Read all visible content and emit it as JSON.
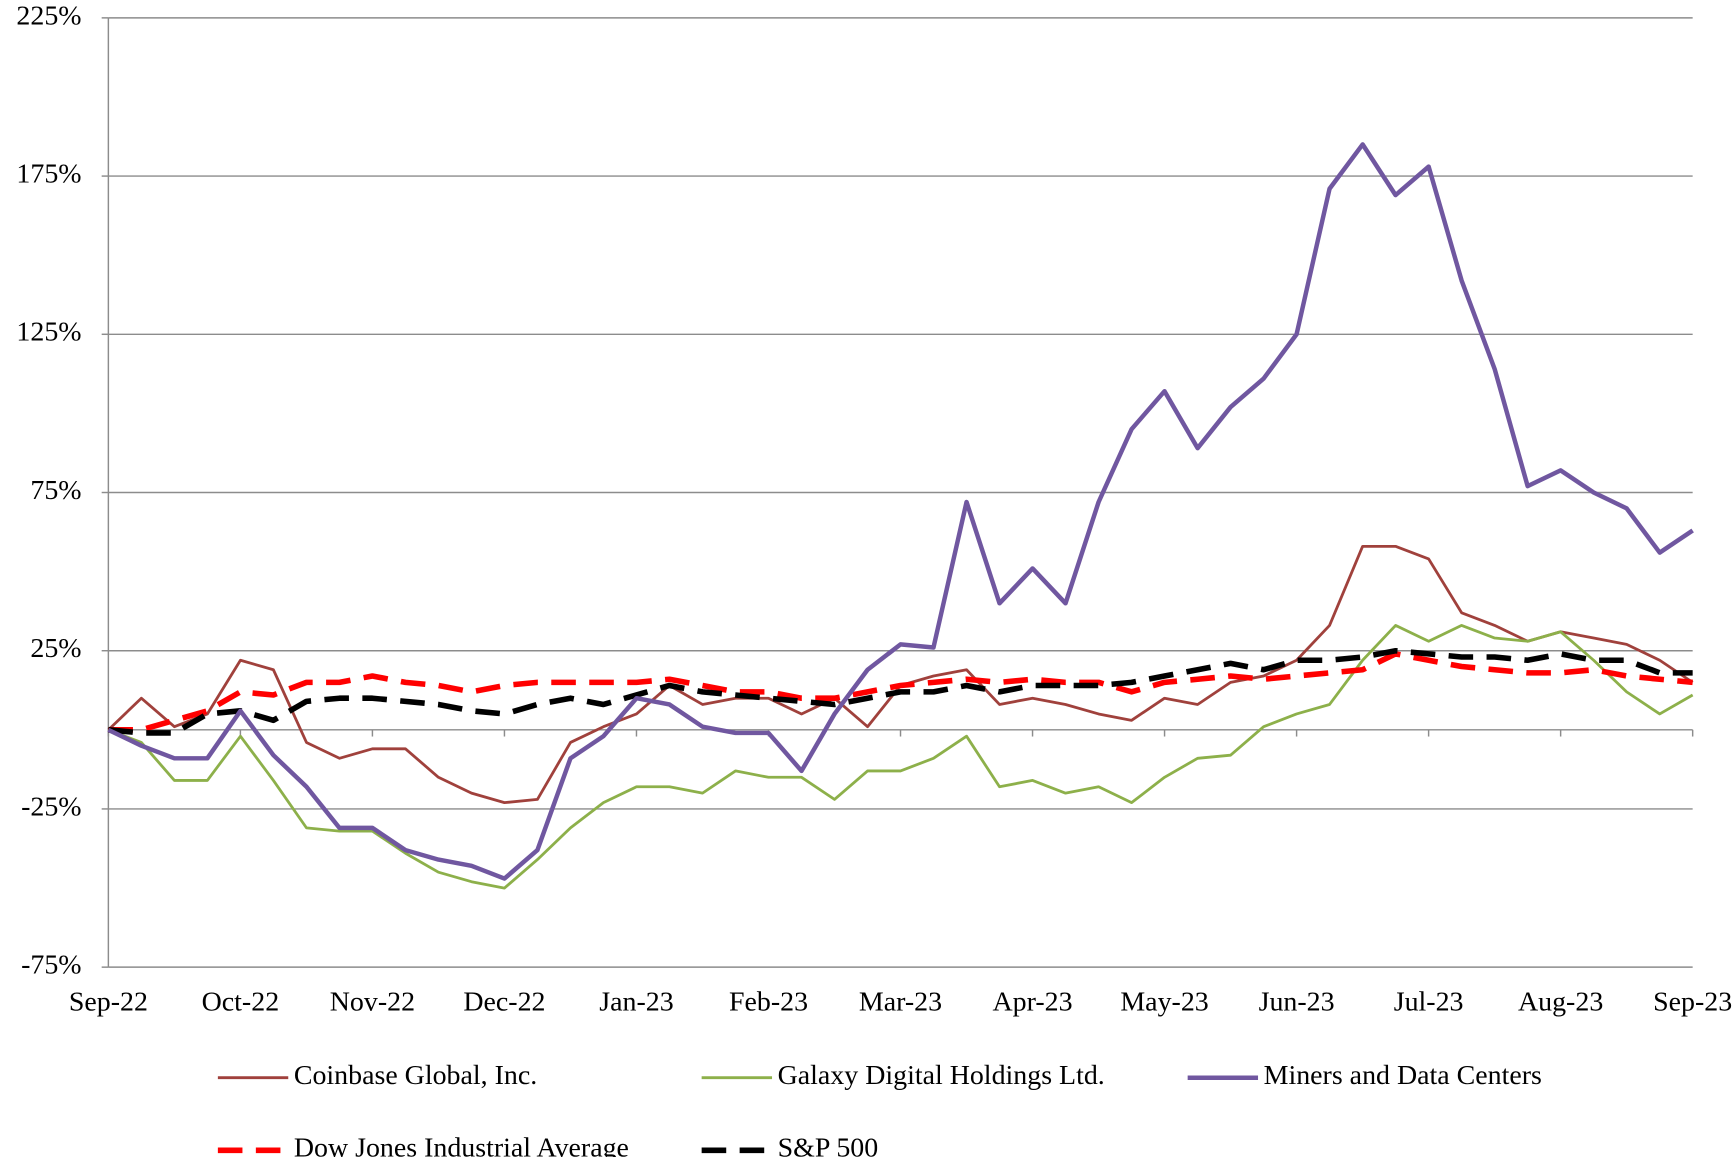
{
  "chart_data": {
    "type": "line",
    "categories": [
      "Sep-22",
      null,
      null,
      null,
      "Oct-22",
      null,
      null,
      null,
      "Nov-22",
      null,
      null,
      null,
      "Dec-22",
      null,
      null,
      null,
      "Jan-23",
      null,
      null,
      null,
      "Feb-23",
      null,
      null,
      null,
      "Mar-23",
      null,
      null,
      null,
      "Apr-23",
      null,
      null,
      null,
      "May-23",
      null,
      null,
      null,
      "Jun-23",
      null,
      null,
      null,
      "Jul-23",
      null,
      null,
      null,
      "Aug-23",
      null,
      null,
      null,
      "Sep-23"
    ],
    "series": [
      {
        "name": "Coinbase Global, Inc.",
        "color": "#a0413c",
        "width": 2.5,
        "dashed": false,
        "values": [
          0,
          10,
          1,
          5,
          22,
          19,
          -4,
          -9,
          -6,
          -6,
          -15,
          -20,
          -23,
          -22,
          -4,
          1,
          5,
          14,
          8,
          10,
          10,
          5,
          10,
          1,
          14,
          17,
          19,
          8,
          10,
          8,
          5,
          3,
          10,
          8,
          15,
          17,
          22,
          33,
          58,
          58,
          54,
          37,
          33,
          28,
          31,
          29,
          27,
          22,
          15
        ]
      },
      {
        "name": "Galaxy Digital Holdings Ltd.",
        "color": "#8db04a",
        "width": 2.5,
        "dashed": false,
        "values": [
          0,
          -4,
          -16,
          -16,
          -2,
          -16,
          -31,
          -32,
          -32,
          -39,
          -45,
          -48,
          -50,
          -41,
          -31,
          -23,
          -18,
          -18,
          -20,
          -13,
          -15,
          -15,
          -22,
          -13,
          -13,
          -9,
          -2,
          -18,
          -16,
          -20,
          -18,
          -23,
          -15,
          -9,
          -8,
          1,
          5,
          8,
          22,
          33,
          28,
          33,
          29,
          28,
          31,
          22,
          12,
          5,
          11
        ]
      },
      {
        "name": "Miners and Data Centers",
        "color": "#7057a0",
        "width": 4,
        "dashed": false,
        "values": [
          0,
          -5,
          -9,
          -9,
          6,
          -8,
          -18,
          -31,
          -31,
          -38,
          -41,
          -43,
          -47,
          -38,
          -9,
          -2,
          10,
          8,
          1,
          -1,
          -1,
          -13,
          5,
          19,
          27,
          26,
          72,
          40,
          51,
          40,
          72,
          95,
          107,
          89,
          102,
          111,
          125,
          171,
          185,
          169,
          178,
          142,
          114,
          77,
          82,
          75,
          70,
          56,
          63
        ]
      },
      {
        "name": "Dow Jones Industrial Average",
        "color": "#ff0000",
        "width": 5,
        "dashed": true,
        "values": [
          0,
          0,
          3,
          6,
          12,
          11,
          15,
          15,
          17,
          15,
          14,
          12,
          14,
          15,
          15,
          15,
          15,
          16,
          14,
          12,
          12,
          10,
          10,
          12,
          14,
          15,
          16,
          15,
          16,
          15,
          15,
          12,
          15,
          16,
          17,
          16,
          17,
          18,
          19,
          24,
          22,
          20,
          19,
          18,
          18,
          19,
          17,
          16,
          15
        ]
      },
      {
        "name": "S&P 500",
        "color": "#000000",
        "width": 5,
        "dashed": true,
        "values": [
          0,
          -1,
          -1,
          5,
          6,
          3,
          9,
          10,
          10,
          9,
          8,
          6,
          5,
          8,
          10,
          8,
          11,
          14,
          12,
          11,
          10,
          9,
          8,
          10,
          12,
          12,
          14,
          12,
          14,
          14,
          14,
          15,
          17,
          19,
          21,
          19,
          22,
          22,
          23,
          25,
          24,
          23,
          23,
          22,
          24,
          22,
          22,
          18,
          18
        ]
      }
    ],
    "ylim": [
      -75,
      225
    ],
    "yticks": [
      {
        "value": -75,
        "label": "-75%"
      },
      {
        "value": -25,
        "label": "-25%"
      },
      {
        "value": 25,
        "label": "25%"
      },
      {
        "value": 75,
        "label": "75%"
      },
      {
        "value": 125,
        "label": "125%"
      },
      {
        "value": 175,
        "label": "175%"
      },
      {
        "value": 225,
        "label": "225%"
      }
    ],
    "grid": true
  }
}
